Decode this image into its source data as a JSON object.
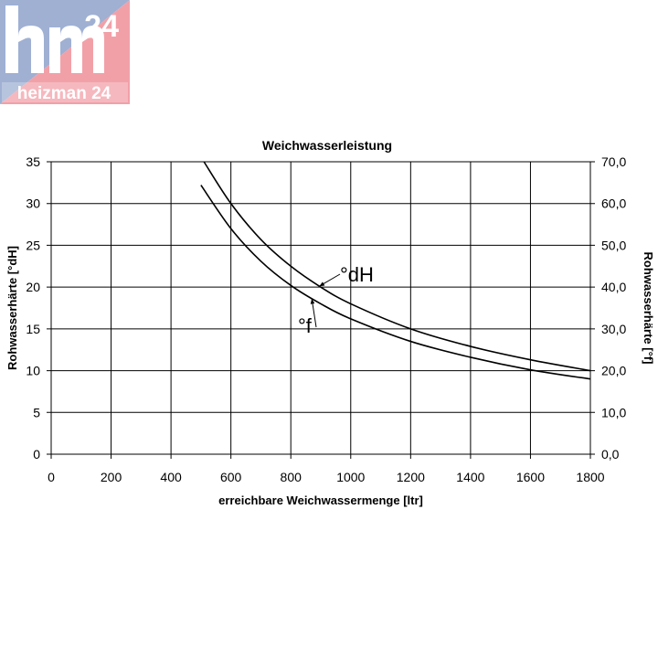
{
  "logo": {
    "mark": "hm",
    "number": "24",
    "wordmark": "heizman 24",
    "colors": {
      "blue": "#9fb0d3",
      "red": "#f2a0a8",
      "white": "#ffffff"
    }
  },
  "chart_data": {
    "type": "line",
    "title": "Weichwasserleistung",
    "xlabel": "erreichbare Weichwassermenge [ltr]",
    "ylabel": "Rohwasserhärte [°dH]",
    "y2label": "Rohwasserhärte [°f]",
    "xlim": [
      0,
      1800
    ],
    "ylim": [
      0,
      35
    ],
    "y2lim": [
      0,
      70
    ],
    "x_ticks": [
      "0",
      "200",
      "400",
      "600",
      "800",
      "1000",
      "1200",
      "1400",
      "1600",
      "1800"
    ],
    "y_ticks": [
      "0",
      "5",
      "10",
      "15",
      "20",
      "25",
      "30",
      "35"
    ],
    "y2_ticks": [
      "0,0",
      "10,0",
      "20,0",
      "30,0",
      "40,0",
      "50,0",
      "60,0",
      "70,0"
    ],
    "grid": true,
    "series": [
      {
        "name": "°dH",
        "x": [
          510,
          600,
          700,
          800,
          900,
          1000,
          1200,
          1400,
          1600,
          1800
        ],
        "values": [
          35,
          30,
          25.7,
          22.5,
          20,
          18,
          15,
          12.9,
          11.3,
          10
        ]
      },
      {
        "name": "°f",
        "x": [
          500,
          600,
          700,
          800,
          900,
          1000,
          1200,
          1400,
          1600,
          1800
        ],
        "values": [
          32.2,
          27,
          23.1,
          20.2,
          18,
          16.2,
          13.5,
          11.6,
          10.1,
          9
        ]
      }
    ],
    "annotations": [
      {
        "text": "°dH",
        "series": 0
      },
      {
        "text": "°f",
        "series": 1
      }
    ]
  }
}
